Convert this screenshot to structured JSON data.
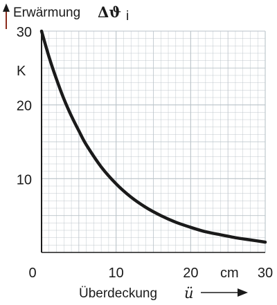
{
  "chart_data": {
    "type": "line",
    "ylabel": "Erwärmung",
    "ylabel_symbol": "Δϑ",
    "ylabel_subscript": "i",
    "yunit": "K",
    "xlabel": "Überdeckung",
    "xlabel_symbol": "ü",
    "xunit": "cm",
    "xlim": [
      0,
      30
    ],
    "ylim": [
      0,
      30
    ],
    "xticks": [
      0,
      10,
      20,
      30
    ],
    "yticks": [
      10,
      20,
      30
    ],
    "grid": true,
    "colors": {
      "curve": "#1a1a1a",
      "grid": "#b9c2c8",
      "axis_arrow": "#8a2a1a"
    },
    "series": [
      {
        "x": [
          0,
          1,
          2,
          3,
          4,
          5,
          6,
          8,
          10,
          12,
          14,
          16,
          18,
          20,
          22,
          24,
          26,
          28,
          30
        ],
        "y": [
          30,
          26.5,
          23.5,
          20.8,
          18.5,
          16.5,
          14.6,
          11.6,
          9.3,
          7.5,
          6.1,
          5.0,
          4.1,
          3.4,
          2.8,
          2.4,
          2.0,
          1.7,
          1.4
        ]
      }
    ]
  }
}
